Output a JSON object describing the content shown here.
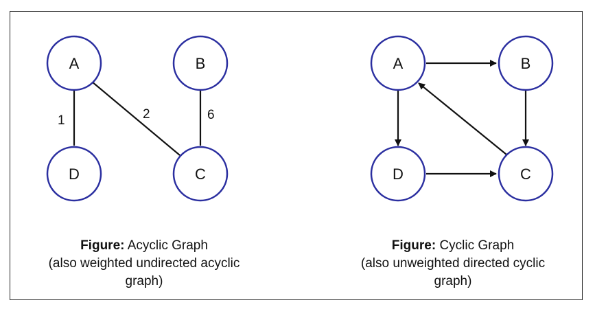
{
  "left_figure": {
    "nodes": {
      "A": "A",
      "B": "B",
      "C": "C",
      "D": "D"
    },
    "weights": {
      "AD": "1",
      "AC": "2",
      "BC": "6"
    },
    "caption_prefix": "Figure:",
    "caption_title": " Acyclic Graph",
    "caption_line2": "(also weighted undirected acyclic",
    "caption_line3": "graph)"
  },
  "right_figure": {
    "nodes": {
      "A": "A",
      "B": "B",
      "C": "C",
      "D": "D"
    },
    "caption_prefix": "Figure:",
    "caption_title": " Cyclic Graph",
    "caption_line2": "(also unweighted directed cyclic",
    "caption_line3": "graph)"
  },
  "colors": {
    "node_stroke": "#2b2fa0",
    "edge": "#111111"
  }
}
